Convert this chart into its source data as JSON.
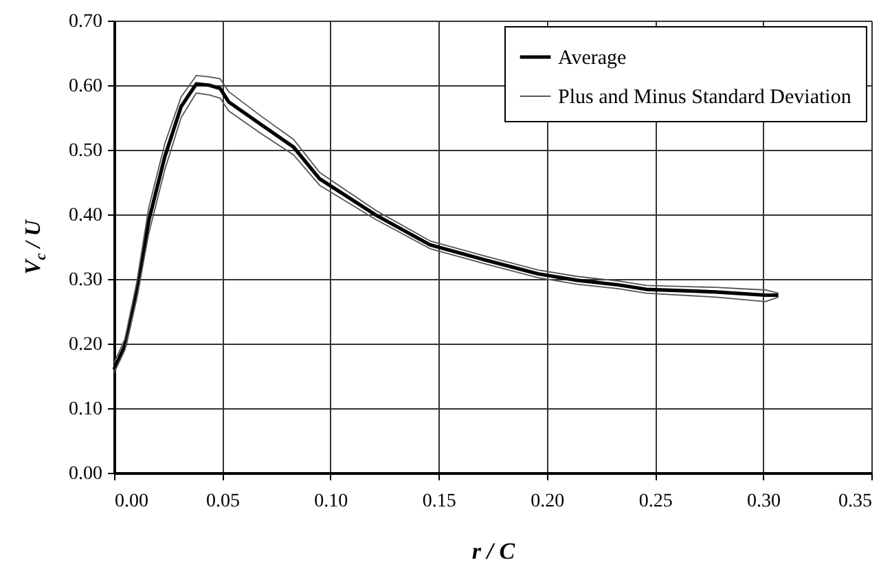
{
  "chart_data": {
    "type": "line",
    "xlabel": "r / C",
    "ylabel": "V$_{c}$ / U",
    "xlim": [
      0,
      0.35
    ],
    "ylim": [
      0,
      0.7
    ],
    "xticks": [
      {
        "value": 0,
        "label": "0.00"
      },
      {
        "value": 0.05,
        "label": "0.05"
      },
      {
        "value": 0.1,
        "label": "0.10"
      },
      {
        "value": 0.15,
        "label": "0.15"
      },
      {
        "value": 0.2,
        "label": "0.20"
      },
      {
        "value": 0.25,
        "label": "0.25"
      },
      {
        "value": 0.3,
        "label": "0.30"
      },
      {
        "value": 0.35,
        "label": "0.35"
      }
    ],
    "yticks": [
      {
        "value": 0,
        "label": "0.00"
      },
      {
        "value": 0.1,
        "label": "0.10"
      },
      {
        "value": 0.2,
        "label": "0.20"
      },
      {
        "value": 0.3,
        "label": "0.30"
      },
      {
        "value": 0.4,
        "label": "0.40"
      },
      {
        "value": 0.5,
        "label": "0.50"
      },
      {
        "value": 0.6,
        "label": "0.60"
      },
      {
        "value": 0.7,
        "label": "0.70"
      }
    ],
    "x": [
      0,
      0.005,
      0.0105,
      0.016,
      0.0235,
      0.031,
      0.038,
      0.044,
      0.049,
      0.053,
      0.068,
      0.083,
      0.095,
      0.121,
      0.146,
      0.172,
      0.196,
      0.214,
      0.233,
      0.246,
      0.278,
      0.301,
      0.307
    ],
    "series": [
      {
        "name": "Average",
        "color": "#000000",
        "values": [
          0.16,
          0.197,
          0.28,
          0.39,
          0.49,
          0.567,
          0.602,
          0.6,
          0.595,
          0.574,
          0.539,
          0.504,
          0.455,
          0.399,
          0.353,
          0.329,
          0.308,
          0.298,
          0.291,
          0.284,
          0.28,
          0.275,
          0.275
        ]
      },
      {
        "name": "Plus and Minus Standard Deviation",
        "color": "#555555",
        "values": [
          0.17,
          0.207,
          0.295,
          0.41,
          0.51,
          0.582,
          0.615,
          0.613,
          0.61,
          0.59,
          0.552,
          0.516,
          0.465,
          0.406,
          0.359,
          0.335,
          0.314,
          0.304,
          0.297,
          0.29,
          0.287,
          0.283,
          0.278
        ]
      },
      {
        "color": "#555555",
        "values": [
          0.155,
          0.19,
          0.27,
          0.37,
          0.47,
          0.55,
          0.588,
          0.585,
          0.58,
          0.56,
          0.525,
          0.492,
          0.445,
          0.392,
          0.347,
          0.323,
          0.302,
          0.292,
          0.285,
          0.278,
          0.272,
          0.265,
          0.272
        ]
      }
    ],
    "grid": true,
    "legend": "top right"
  }
}
